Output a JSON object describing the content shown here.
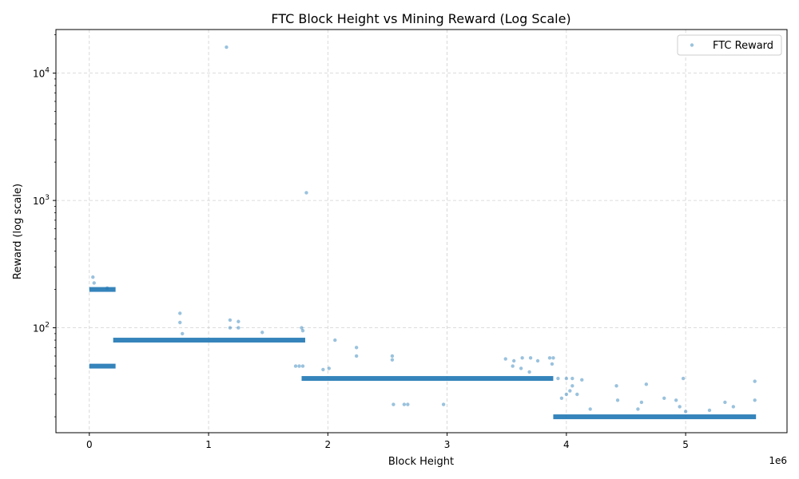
{
  "chart_data": {
    "type": "scatter",
    "title": "FTC Block Height vs Mining Reward (Log Scale)",
    "xlabel": "Block Height",
    "ylabel": "Reward (log scale)",
    "x_offset_label": "1e6",
    "xlim": [
      -280000,
      5850000
    ],
    "ylim": [
      15,
      22000
    ],
    "yscale": "log",
    "grid": true,
    "legend": {
      "position": "top-right",
      "entries": [
        "FTC Reward"
      ]
    },
    "x_ticks": [
      {
        "value": 0,
        "label": "0"
      },
      {
        "value": 1000000,
        "label": "1"
      },
      {
        "value": 2000000,
        "label": "2"
      },
      {
        "value": 3000000,
        "label": "3"
      },
      {
        "value": 4000000,
        "label": "4"
      },
      {
        "value": 5000000,
        "label": "5"
      }
    ],
    "y_ticks": [
      {
        "value": 100,
        "base": "10",
        "exp": "2"
      },
      {
        "value": 1000,
        "base": "10",
        "exp": "3"
      },
      {
        "value": 10000,
        "base": "10",
        "exp": "4"
      }
    ],
    "series": [
      {
        "name": "FTC Reward",
        "color": "#1f77b4",
        "bands": [
          {
            "x_start": 0,
            "x_end": 220000,
            "y": 200
          },
          {
            "x_start": 0,
            "x_end": 220000,
            "y": 50
          },
          {
            "x_start": 200000,
            "x_end": 1810000,
            "y": 80
          },
          {
            "x_start": 1780000,
            "x_end": 3890000,
            "y": 40
          },
          {
            "x_start": 3890000,
            "x_end": 5590000,
            "y": 20
          }
        ],
        "points": [
          [
            1150000,
            16000
          ],
          [
            1820000,
            1150
          ],
          [
            30000,
            250
          ],
          [
            40000,
            225
          ],
          [
            150000,
            205
          ],
          [
            760000,
            130
          ],
          [
            760000,
            110
          ],
          [
            780000,
            90
          ],
          [
            1180000,
            115
          ],
          [
            1250000,
            112
          ],
          [
            1180000,
            100
          ],
          [
            1250000,
            100
          ],
          [
            1450000,
            92
          ],
          [
            1780000,
            100
          ],
          [
            1790000,
            95
          ],
          [
            2060000,
            80
          ],
          [
            2240000,
            70
          ],
          [
            2240000,
            60
          ],
          [
            2540000,
            60
          ],
          [
            2540000,
            56
          ],
          [
            3490000,
            57
          ],
          [
            3560000,
            55
          ],
          [
            3630000,
            58
          ],
          [
            3700000,
            58
          ],
          [
            3760000,
            55
          ],
          [
            3860000,
            58
          ],
          [
            3890000,
            58
          ],
          [
            3880000,
            52
          ],
          [
            3550000,
            50
          ],
          [
            3620000,
            48
          ],
          [
            3690000,
            45
          ],
          [
            2550000,
            25
          ],
          [
            2640000,
            25
          ],
          [
            2670000,
            25
          ],
          [
            2970000,
            25
          ],
          [
            1730000,
            50
          ],
          [
            1760000,
            50
          ],
          [
            1790000,
            50
          ],
          [
            1960000,
            47
          ],
          [
            2010000,
            48
          ],
          [
            3930000,
            40
          ],
          [
            4000000,
            40
          ],
          [
            4050000,
            40
          ],
          [
            4130000,
            39
          ],
          [
            4050000,
            35
          ],
          [
            4030000,
            32
          ],
          [
            4090000,
            30
          ],
          [
            3960000,
            28
          ],
          [
            4000000,
            30
          ],
          [
            4420000,
            35
          ],
          [
            4430000,
            27
          ],
          [
            4670000,
            36
          ],
          [
            4630000,
            26
          ],
          [
            4820000,
            28
          ],
          [
            4980000,
            40
          ],
          [
            4920000,
            27
          ],
          [
            4950000,
            24
          ],
          [
            5330000,
            26
          ],
          [
            5580000,
            38
          ],
          [
            5580000,
            27
          ],
          [
            5400000,
            24
          ],
          [
            4200000,
            23
          ],
          [
            4600000,
            23
          ],
          [
            5000000,
            22
          ],
          [
            5200000,
            22.5
          ]
        ]
      }
    ]
  }
}
